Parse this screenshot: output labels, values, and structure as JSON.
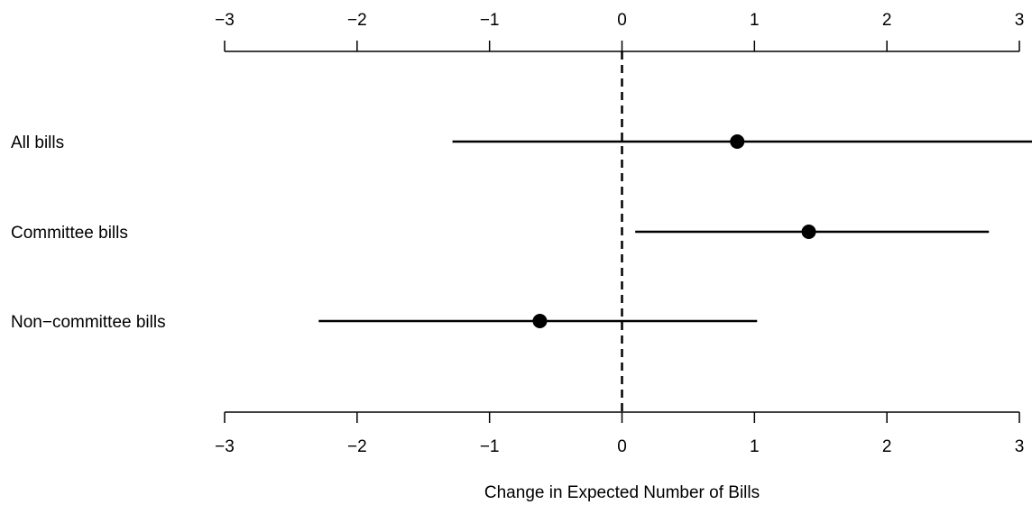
{
  "chart_data": {
    "type": "dot-interval",
    "xlabel": "Change in Expected Number of Bills",
    "xlim": [
      -3,
      3
    ],
    "ticks": [
      -3,
      -2,
      -1,
      0,
      1,
      2,
      3
    ],
    "tick_labels": [
      "−3",
      "−2",
      "−1",
      "0",
      "1",
      "2",
      "3"
    ],
    "reference_line": 0,
    "axes": [
      "top",
      "bottom"
    ],
    "categories": [
      "All bills",
      "Committee bills",
      "Non−committee bills"
    ],
    "estimates": [
      0.87,
      1.41,
      -0.62
    ],
    "lower": [
      -1.28,
      0.1,
      -2.29
    ],
    "upper": [
      3.1,
      2.77,
      1.02
    ]
  }
}
